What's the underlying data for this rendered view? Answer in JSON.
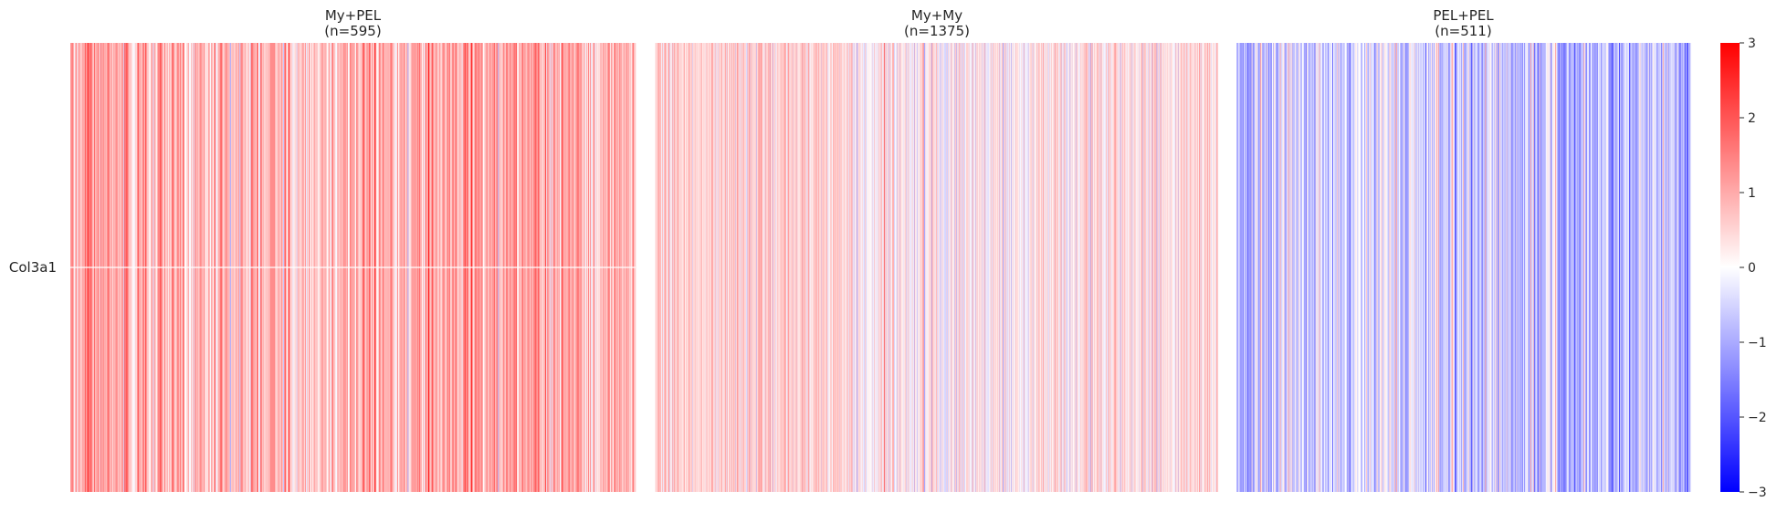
{
  "chart_data": {
    "type": "heatmap",
    "colormap": "bwr",
    "vmin": -3,
    "vmax": 3,
    "colorbar_ticks": [
      "3",
      "2",
      "1",
      "0",
      "−1",
      "−2",
      "−3"
    ],
    "row_labels": [
      "Col3a1"
    ],
    "row_label_position": "middle",
    "panels": [
      {
        "title": "My+PEL\n(n=595)",
        "n": 595,
        "value_profile": {
          "mean": 0.9,
          "spread": 0.55,
          "segments": [
            {
              "from": 0.0,
              "to": 0.1,
              "mean": 1.1
            },
            {
              "from": 0.1,
              "to": 0.5,
              "mean": 0.75
            },
            {
              "from": 0.5,
              "to": 0.85,
              "mean": 1.0
            },
            {
              "from": 0.85,
              "to": 1.0,
              "mean": 0.8
            }
          ]
        }
      },
      {
        "title": "My+My\n(n=1375)",
        "n": 1375,
        "value_profile": {
          "mean": 0.35,
          "spread": 0.5,
          "segments": [
            {
              "from": 0.0,
              "to": 0.35,
              "mean": 0.55
            },
            {
              "from": 0.35,
              "to": 0.7,
              "mean": 0.2
            },
            {
              "from": 0.7,
              "to": 1.0,
              "mean": 0.35
            }
          ]
        }
      },
      {
        "title": "PEL+PEL\n(n=511)",
        "n": 511,
        "value_profile": {
          "mean": -0.75,
          "spread": 0.6,
          "segments": [
            {
              "from": 0.0,
              "to": 0.1,
              "mean": -0.9
            },
            {
              "from": 0.1,
              "to": 0.65,
              "mean": -0.55
            },
            {
              "from": 0.65,
              "to": 1.0,
              "mean": -0.75
            }
          ]
        }
      }
    ],
    "grid": false,
    "legend": "colorbar right"
  }
}
